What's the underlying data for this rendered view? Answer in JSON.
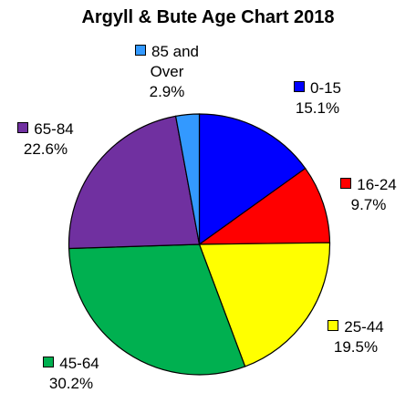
{
  "chart_data": {
    "type": "pie",
    "title": "Argyll & Bute Age Chart 2018",
    "categories": [
      "0-15",
      "16-24",
      "25-44",
      "45-64",
      "65-84",
      "85 and Over"
    ],
    "values": [
      15.1,
      9.7,
      19.5,
      30.2,
      22.6,
      2.9
    ],
    "value_labels": [
      "15.1%",
      "9.7%",
      "19.5%",
      "30.2%",
      "22.6%",
      "2.9%"
    ],
    "colors": [
      "#0000ff",
      "#ff0000",
      "#ffff00",
      "#00b050",
      "#7030a0",
      "#3399ff"
    ]
  }
}
